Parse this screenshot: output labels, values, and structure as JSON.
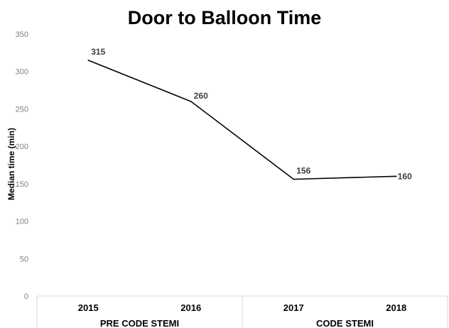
{
  "chart_data": {
    "type": "line",
    "title": "Door to Balloon Time",
    "ylabel": "Median time (min)",
    "xlabel": "",
    "categories": [
      "2015",
      "2016",
      "2017",
      "2018"
    ],
    "groups": [
      {
        "label": "PRE CODE STEMI",
        "categories": [
          "2015",
          "2016"
        ]
      },
      {
        "label": "CODE STEMI",
        "categories": [
          "2017",
          "2018"
        ]
      }
    ],
    "series": [
      {
        "values": [
          315,
          260,
          156,
          160
        ],
        "color": "#000000"
      }
    ],
    "data_labels": [
      "315",
      "260",
      "156",
      "160"
    ],
    "ylim": [
      0,
      350
    ],
    "yticks": [
      "0",
      "50",
      "100",
      "150",
      "200",
      "250",
      "300",
      "350"
    ],
    "grid": false,
    "legend": "none"
  }
}
